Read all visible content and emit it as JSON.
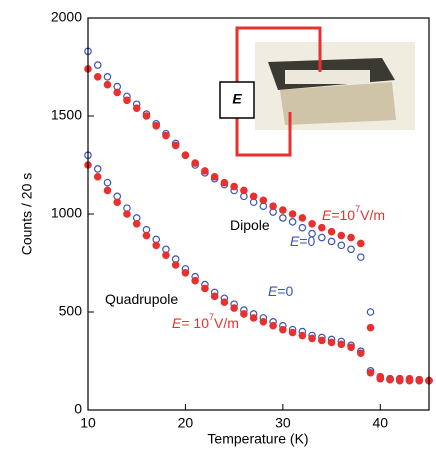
{
  "chart_data": {
    "type": "scatter",
    "xlabel": "Temperature (K)",
    "ylabel": "Counts / 20 s",
    "xlim": [
      10,
      45
    ],
    "ylim": [
      0,
      2000
    ],
    "xticks": [
      10,
      20,
      30,
      40
    ],
    "yticks": [
      0,
      500,
      1000,
      1500,
      2000
    ],
    "x": [
      10,
      11,
      12,
      13,
      14,
      15,
      16,
      17,
      18,
      19,
      20,
      21,
      22,
      23,
      24,
      25,
      26,
      27,
      28,
      29,
      30,
      31,
      32,
      33,
      34,
      35,
      36,
      37,
      38,
      39,
      40,
      41,
      42,
      43,
      44,
      45
    ],
    "series": [
      {
        "color": "#3a55b0",
        "filled": false,
        "values": [
          1830,
          1760,
          1700,
          1650,
          1600,
          1560,
          1510,
          1460,
          1410,
          1360,
          1300,
          1250,
          1210,
          1180,
          1150,
          1120,
          1090,
          1060,
          1040,
          1010,
          980,
          960,
          930,
          900,
          880,
          860,
          840,
          820,
          780,
          500,
          170,
          160,
          160,
          155,
          150,
          150
        ]
      },
      {
        "color": "#e8312f",
        "filled": true,
        "values": [
          1740,
          1700,
          1660,
          1620,
          1580,
          1540,
          1500,
          1450,
          1400,
          1350,
          1300,
          1260,
          1220,
          1190,
          1160,
          1140,
          1120,
          1090,
          1070,
          1040,
          1020,
          1000,
          980,
          950,
          930,
          910,
          890,
          880,
          850,
          420,
          170,
          160,
          160,
          160,
          155,
          150
        ]
      },
      {
        "color": "#3a55b0",
        "filled": false,
        "values": [
          1300,
          1230,
          1160,
          1090,
          1030,
          980,
          920,
          870,
          820,
          770,
          720,
          680,
          640,
          600,
          570,
          540,
          510,
          490,
          470,
          450,
          430,
          410,
          400,
          380,
          370,
          360,
          350,
          330,
          300,
          200,
          160,
          155,
          150,
          150,
          150,
          150
        ]
      },
      {
        "color": "#e8312f",
        "filled": true,
        "values": [
          1250,
          1190,
          1120,
          1060,
          1000,
          950,
          890,
          840,
          790,
          740,
          700,
          660,
          620,
          580,
          550,
          520,
          490,
          470,
          450,
          430,
          410,
          395,
          380,
          365,
          355,
          345,
          335,
          320,
          290,
          190,
          160,
          155,
          150,
          150,
          150,
          150
        ]
      }
    ],
    "annotations": [
      {
        "text": "Dipole",
        "color": "#000000"
      },
      {
        "italic": "E",
        "text": "=10",
        "sup": "7",
        "unit": "V/m",
        "color": "#e8312f"
      },
      {
        "italic": "E",
        "text": "=0",
        "color": "#3a55b0"
      },
      {
        "italic": "E",
        "text": "=0",
        "color": "#3a55b0"
      },
      {
        "text": "Quadrupole",
        "color": "#000000"
      },
      {
        "italic": "E",
        "text": "= 10",
        "sup": "7",
        "unit": "V/m",
        "color": "#e8312f"
      }
    ],
    "inset_label": "E"
  }
}
